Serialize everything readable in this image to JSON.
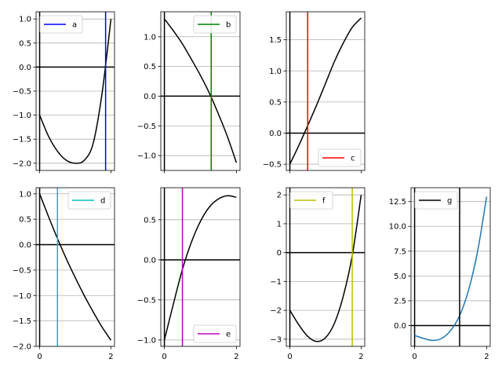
{
  "chart_data": [
    {
      "type": "line",
      "panel": "a",
      "legend": "a",
      "legend_position": "upper-left",
      "curve": {
        "x": [
          0,
          0.25,
          0.5,
          0.75,
          1.0,
          1.25,
          1.5,
          1.75,
          2.0
        ],
        "y": [
          -1.0,
          -1.44,
          -1.75,
          -1.94,
          -2.0,
          -1.94,
          -1.59,
          -0.55,
          1.0
        ],
        "color": "#000000"
      },
      "vline": {
        "x": 1.85,
        "color": "#0000ff"
      },
      "hline": {
        "y": 0,
        "color": "#000000"
      },
      "xlim": [
        -0.1,
        2.1
      ],
      "ylim": [
        -2.15,
        1.15
      ],
      "yticks": [
        1.0,
        0.5,
        0.0,
        -0.5,
        -1.0,
        -1.5,
        -2.0
      ],
      "ytick_labels": [
        "1.0",
        "0.5",
        "0.0",
        "−0.5",
        "−1.0",
        "−1.5",
        "−2.0"
      ],
      "xticks": [
        0,
        2
      ],
      "xtick_labels": [],
      "grid": "y"
    },
    {
      "type": "line",
      "panel": "b",
      "legend": "b",
      "legend_position": "upper-right",
      "curve": {
        "x": [
          0,
          0.25,
          0.5,
          0.75,
          1.0,
          1.25,
          1.5,
          1.75,
          2.0
        ],
        "y": [
          1.3,
          1.1,
          0.88,
          0.62,
          0.35,
          0.05,
          -0.3,
          -0.68,
          -1.12
        ],
        "color": "#000000"
      },
      "vline": {
        "x": 1.3,
        "color": "#008000"
      },
      "hline": {
        "y": 0,
        "color": "#000000"
      },
      "xlim": [
        -0.1,
        2.1
      ],
      "ylim": [
        -1.25,
        1.42
      ],
      "yticks": [
        1.0,
        0.5,
        0.0,
        -0.5,
        -1.0
      ],
      "ytick_labels": [
        "1.0",
        "0.5",
        "0.0",
        "−0.5",
        "−1.0"
      ],
      "xticks": [
        0,
        2
      ],
      "xtick_labels": [],
      "grid": "y"
    },
    {
      "type": "line",
      "panel": "c",
      "legend": "c",
      "legend_position": "lower-right",
      "curve": {
        "x": [
          0,
          0.25,
          0.5,
          0.75,
          1.0,
          1.25,
          1.5,
          1.75,
          2.0
        ],
        "y": [
          -0.5,
          -0.2,
          0.12,
          0.45,
          0.8,
          1.15,
          1.45,
          1.7,
          1.85
        ],
        "color": "#000000"
      },
      "vline": {
        "x": 0.5,
        "color": "#ff0000"
      },
      "hline": {
        "y": 0,
        "color": "#000000"
      },
      "xlim": [
        -0.1,
        2.1
      ],
      "ylim": [
        -0.6,
        1.95
      ],
      "yticks": [
        1.5,
        1.0,
        0.5,
        0.0,
        -0.5
      ],
      "ytick_labels": [
        "1.5",
        "1.0",
        "0.5",
        "0.0",
        "−0.5"
      ],
      "xticks": [
        0,
        2
      ],
      "xtick_labels": [],
      "grid": "y"
    },
    {
      "type": "line",
      "panel": "d",
      "legend": "d",
      "legend_position": "upper-right",
      "curve": {
        "x": [
          0,
          0.25,
          0.5,
          0.75,
          1.0,
          1.25,
          1.5,
          1.75,
          2.0
        ],
        "y": [
          1.0,
          0.55,
          0.12,
          -0.28,
          -0.65,
          -1.0,
          -1.32,
          -1.62,
          -1.88
        ],
        "color": "#000000"
      },
      "vline": {
        "x": 0.5,
        "color": "#00bfbf"
      },
      "hline": {
        "y": 0,
        "color": "#000000"
      },
      "xlim": [
        -0.1,
        2.1
      ],
      "ylim": [
        -2.0,
        1.12
      ],
      "yticks": [
        1.0,
        0.5,
        0.0,
        -0.5,
        -1.0,
        -1.5,
        -2.0
      ],
      "ytick_labels": [
        "1.0",
        "0.5",
        "0.0",
        "−0.5",
        "−1.0",
        "−1.5",
        "−2.0"
      ],
      "xticks": [
        0,
        2
      ],
      "xtick_labels": [
        "0",
        "2"
      ],
      "grid": "y"
    },
    {
      "type": "line",
      "panel": "e",
      "legend": "e",
      "legend_position": "lower-right",
      "curve": {
        "x": [
          0,
          0.25,
          0.5,
          0.75,
          1.0,
          1.25,
          1.5,
          1.75,
          2.0
        ],
        "y": [
          -1.0,
          -0.55,
          -0.12,
          0.22,
          0.48,
          0.66,
          0.76,
          0.8,
          0.78
        ],
        "color": "#000000"
      },
      "vline": {
        "x": 0.5,
        "color": "#bf00bf"
      },
      "hline": {
        "y": 0,
        "color": "#000000"
      },
      "xlim": [
        -0.1,
        2.1
      ],
      "ylim": [
        -1.08,
        0.9
      ],
      "yticks": [
        0.5,
        0.0,
        -0.5,
        -1.0
      ],
      "ytick_labels": [
        "0.5",
        "0.0",
        "−0.5",
        "−1.0"
      ],
      "xticks": [
        0,
        2
      ],
      "xtick_labels": [
        "0",
        "2"
      ],
      "grid": "y"
    },
    {
      "type": "line",
      "panel": "f",
      "legend": "f",
      "legend_position": "upper-left",
      "curve": {
        "x": [
          0,
          0.25,
          0.5,
          0.75,
          1.0,
          1.25,
          1.5,
          1.75,
          2.0
        ],
        "y": [
          -2.0,
          -2.5,
          -2.9,
          -3.08,
          -2.95,
          -2.45,
          -1.5,
          -0.1,
          2.0
        ],
        "color": "#000000"
      },
      "vline": {
        "x": 1.75,
        "color": "#bfbf00"
      },
      "hline": {
        "y": 0,
        "color": "#000000"
      },
      "xlim": [
        -0.1,
        2.1
      ],
      "ylim": [
        -3.25,
        2.25
      ],
      "yticks": [
        2,
        1,
        0,
        -1,
        -2,
        -3
      ],
      "ytick_labels": [
        "2",
        "1",
        "0",
        "−1",
        "−2",
        "−3"
      ],
      "xticks": [
        0,
        2
      ],
      "xtick_labels": [
        "0",
        "2"
      ],
      "grid": "y"
    },
    {
      "type": "line",
      "panel": "g",
      "legend": "g",
      "legend_position": "upper-left",
      "curve": {
        "x": [
          0,
          0.25,
          0.5,
          0.75,
          1.0,
          1.25,
          1.5,
          1.75,
          2.0
        ],
        "y": [
          -1.0,
          -1.3,
          -1.5,
          -1.3,
          -0.5,
          1.0,
          3.6,
          7.5,
          13.0
        ],
        "color": "#1f77b4"
      },
      "vline": {
        "x": 1.25,
        "color": "#000000"
      },
      "legend_color": "#000000",
      "hline": {
        "y": 0,
        "color": "#000000"
      },
      "xlim": [
        -0.1,
        2.1
      ],
      "ylim": [
        -2.1,
        13.9
      ],
      "yticks": [
        12.5,
        10.0,
        7.5,
        5.0,
        2.5,
        0.0
      ],
      "ytick_labels": [
        "12.5",
        "10.0",
        "7.5",
        "5.0",
        "2.5",
        "0.0"
      ],
      "xticks": [
        0,
        2
      ],
      "xtick_labels": [
        "0",
        "2"
      ],
      "grid": "y"
    }
  ]
}
